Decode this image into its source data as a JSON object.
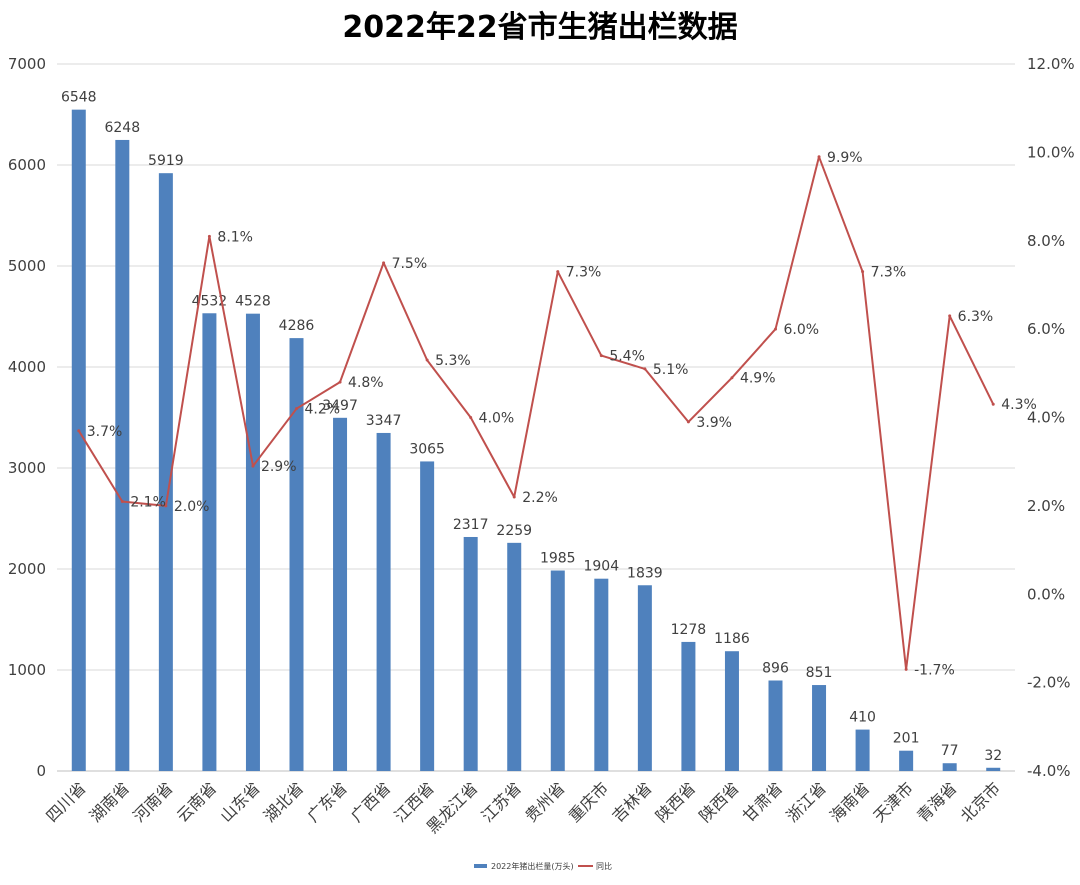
{
  "chart_data": {
    "type": "bar",
    "title": "2022年22省市生猪出栏数据",
    "categories": [
      "四川省",
      "湖南省",
      "河南省",
      "云南省",
      "山东省",
      "湖北省",
      "广东省",
      "广西省",
      "江西省",
      "黑龙江省",
      "江苏省",
      "贵州省",
      "重庆市",
      "吉林省",
      "陕西省",
      "陕西省",
      "甘肃省",
      "浙江省",
      "海南省",
      "天津市",
      "青海省",
      "北京市"
    ],
    "series": [
      {
        "name": "2022年猪出栏量(万头)",
        "type": "bar",
        "axis": "left",
        "color": "#4F81BD",
        "values": [
          6548,
          6248,
          5919,
          4532,
          4528,
          4286,
          3497,
          3347,
          3065,
          2317,
          2259,
          1985,
          1904,
          1839,
          1278,
          1186,
          896,
          851,
          410,
          201,
          77,
          32
        ]
      },
      {
        "name": "同比",
        "type": "line",
        "axis": "right",
        "color": "#C0504D",
        "values": [
          3.7,
          2.1,
          2.0,
          8.1,
          2.9,
          4.2,
          4.8,
          7.5,
          5.3,
          4.0,
          2.2,
          7.3,
          5.4,
          5.1,
          3.9,
          4.9,
          6.0,
          9.9,
          7.3,
          -1.7,
          6.3,
          4.3
        ]
      }
    ],
    "y_left": {
      "min": 0,
      "max": 7000,
      "ticks": [
        "0",
        "1000",
        "2000",
        "3000",
        "4000",
        "5000",
        "6000",
        "7000"
      ]
    },
    "y_right": {
      "min": -4.0,
      "max": 12.0,
      "ticks": [
        "-4.0%",
        "-2.0%",
        "0.0%",
        "2.0%",
        "4.0%",
        "6.0%",
        "8.0%",
        "10.0%",
        "12.0%"
      ]
    },
    "bar_labels": [
      "6548",
      "6248",
      "5919",
      "4532",
      "4528",
      "4286",
      "3497",
      "3347",
      "3065",
      "2317",
      "2259",
      "1985",
      "1904",
      "1839",
      "1278",
      "1186",
      "896",
      "851",
      "410",
      "201",
      "77",
      "32"
    ],
    "line_labels": [
      "3.7%",
      "2.1%",
      "2.0%",
      "8.1%",
      "2.9%",
      "4.2%",
      "4.8%",
      "7.5%",
      "5.3%",
      "4.0%",
      "2.2%",
      "7.3%",
      "5.4%",
      "5.1%",
      "3.9%",
      "4.9%",
      "6.0%",
      "9.9%",
      "7.3%",
      "-1.7%",
      "6.3%",
      "4.3%"
    ],
    "grid": true,
    "legend_position": "bottom"
  }
}
